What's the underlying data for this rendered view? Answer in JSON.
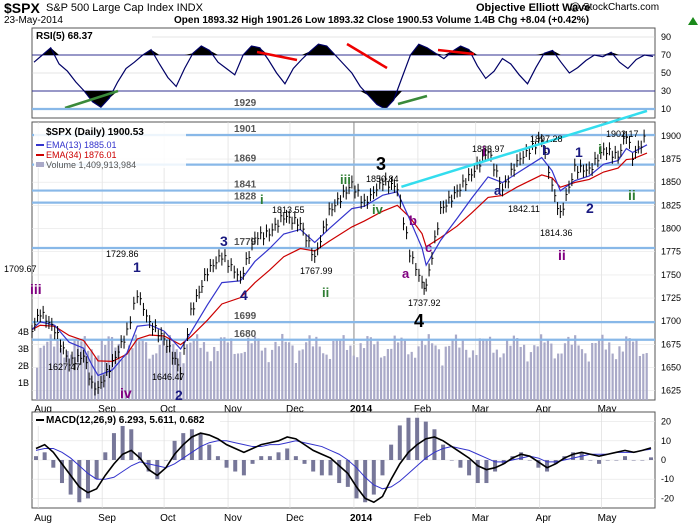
{
  "header": {
    "symbol": "$SPX",
    "description": "S&P 500 Large Cap Index INDX",
    "date": "23-May-2014",
    "brand": "Objective Elliott Wave",
    "copyright": "@ StockCharts.com",
    "quote": "Open 1893.32   High 1901.26   Low 1893.32   Close 1900.53   Volume 1.4B   Chg +8.04 (+0.42%)",
    "chg_icon": "up-triangle-icon"
  },
  "colors": {
    "price_up": "#000000",
    "ema13": "#3333cc",
    "ema34": "#cc0000",
    "volume": "#a9a9c8",
    "trend": "#33ddee",
    "wave_blue": "#1a1a80",
    "wave_purple": "#800080",
    "wave_green": "#2e7d32",
    "rsi": "#000066",
    "macd": "#000000",
    "signal": "#3333cc",
    "hist": "#9999bb"
  },
  "rsi_panel": {
    "legend": "RSI(5) 68.37",
    "ticks": [
      "90",
      "70",
      "50",
      "30",
      "10"
    ]
  },
  "price_panel": {
    "legend": {
      "title": "$SPX (Daily) 1900.53",
      "ema13": "EMA(13) 1885.01",
      "ema34": "EMA(34) 1876.01",
      "volume": "Volume 1,409,913,984"
    },
    "y_ticks": [
      "1900",
      "1875",
      "1850",
      "1825",
      "1800",
      "1775",
      "1750",
      "1725",
      "1700",
      "1675",
      "1650",
      "1625"
    ],
    "volume_ticks": [
      "4B",
      "3B",
      "2B",
      "1B"
    ],
    "x_ticks": [
      "Aug",
      "Sep",
      "Oct",
      "Nov",
      "Dec",
      "2014",
      "Feb",
      "Mar",
      "Apr",
      "May"
    ]
  },
  "macd_panel": {
    "legend": "MACD(12,26,9) 6.293, 5.611, 0.682",
    "ticks": [
      "20",
      "10",
      "0",
      "-10",
      "-20"
    ],
    "x_ticks": [
      "Aug",
      "Sep",
      "Oct",
      "Nov",
      "Dec",
      "2014",
      "Feb",
      "Mar",
      "Apr",
      "May"
    ]
  },
  "chart_data": {
    "type": "line",
    "title": "$SPX S&P 500 Large Cap Index INDX",
    "ylim": [
      1615,
      1915
    ],
    "x_range": [
      "2013-07-29",
      "2014-05-23"
    ],
    "series": [
      {
        "name": "$SPX (Daily) 1900.53",
        "points": [
          [
            "2013-07-29",
            1691
          ],
          [
            "2013-08-02",
            1709.67
          ],
          [
            "2013-08-09",
            1691
          ],
          [
            "2013-08-16",
            1655
          ],
          [
            "2013-08-23",
            1663
          ],
          [
            "2013-08-27",
            1631
          ],
          [
            "2013-08-30",
            1627.47
          ],
          [
            "2013-09-06",
            1655
          ],
          [
            "2013-09-13",
            1688
          ],
          [
            "2013-09-18",
            1729.86
          ],
          [
            "2013-09-24",
            1698
          ],
          [
            "2013-10-01",
            1681
          ],
          [
            "2013-10-09",
            1646.47
          ],
          [
            "2013-10-14",
            1710
          ],
          [
            "2013-10-22",
            1754
          ],
          [
            "2013-10-29",
            1771
          ],
          [
            "2013-11-07",
            1746
          ],
          [
            "2013-11-14",
            1790
          ],
          [
            "2013-11-21",
            1795
          ],
          [
            "2013-11-28",
            1813.55
          ],
          [
            "2013-12-06",
            1805
          ],
          [
            "2013-12-13",
            1767.99
          ],
          [
            "2013-12-20",
            1818
          ],
          [
            "2013-12-31",
            1848
          ],
          [
            "2014-01-06",
            1827
          ],
          [
            "2014-01-15",
            1850.84
          ],
          [
            "2014-01-22",
            1844
          ],
          [
            "2014-01-28",
            1774
          ],
          [
            "2014-02-03",
            1741
          ],
          [
            "2014-02-05",
            1737.92
          ],
          [
            "2014-02-12",
            1820
          ],
          [
            "2014-02-20",
            1840
          ],
          [
            "2014-02-27",
            1859
          ],
          [
            "2014-03-07",
            1883.97
          ],
          [
            "2014-03-14",
            1842.11
          ],
          [
            "2014-03-21",
            1872
          ],
          [
            "2014-04-02",
            1897.28
          ],
          [
            "2014-04-07",
            1845
          ],
          [
            "2014-04-11",
            1814.36
          ],
          [
            "2014-04-18",
            1865
          ],
          [
            "2014-04-25",
            1863
          ],
          [
            "2014-05-02",
            1885
          ],
          [
            "2014-05-09",
            1878
          ],
          [
            "2014-05-13",
            1902.17
          ],
          [
            "2014-05-16",
            1877
          ],
          [
            "2014-05-23",
            1900.53
          ]
        ]
      }
    ],
    "support_lines": [
      1929,
      1901,
      1869,
      1841,
      1828,
      1779,
      1699,
      1680
    ],
    "trendline": [
      [
        "2014-01-24",
        1845
      ],
      [
        "2014-05-23",
        1927
      ]
    ],
    "price_labels": [
      "1709.67",
      "1729.86",
      "1627.47",
      "1646.47",
      "1813.55",
      "1767.99",
      "1850.84",
      "1737.92",
      "1883.97",
      "1842.11",
      "1897.28",
      "1814.36",
      "1902.17"
    ],
    "wave_labels": [
      {
        "text": "iii",
        "color": "purple"
      },
      {
        "text": "iv",
        "color": "purple"
      },
      {
        "text": "1",
        "color": "blue"
      },
      {
        "text": "2",
        "color": "blue"
      },
      {
        "text": "3",
        "color": "blue"
      },
      {
        "text": "4",
        "color": "blue"
      },
      {
        "text": "i",
        "color": "green"
      },
      {
        "text": "ii",
        "color": "green"
      },
      {
        "text": "iii",
        "color": "green"
      },
      {
        "text": "iv",
        "color": "green"
      },
      {
        "text": "3",
        "color": "black"
      },
      {
        "text": "4",
        "color": "black"
      },
      {
        "text": "a",
        "color": "purple"
      },
      {
        "text": "b",
        "color": "purple"
      },
      {
        "text": "c",
        "color": "purple"
      },
      {
        "text": "i",
        "color": "purple"
      },
      {
        "text": "a",
        "color": "blue"
      },
      {
        "text": "b",
        "color": "blue"
      },
      {
        "text": "1",
        "color": "blue"
      },
      {
        "text": "2",
        "color": "blue"
      },
      {
        "text": "ii",
        "color": "purple"
      },
      {
        "text": "i",
        "color": "green"
      },
      {
        "text": "ii",
        "color": "green"
      }
    ],
    "rsi": {
      "name": "RSI(5) 68.37",
      "ylim": [
        0,
        100
      ],
      "levels": [
        70,
        50,
        30
      ],
      "values": [
        62,
        70,
        78,
        60,
        52,
        40,
        30,
        18,
        12,
        22,
        40,
        55,
        62,
        70,
        76,
        60,
        45,
        35,
        55,
        72,
        80,
        75,
        62,
        55,
        48,
        70,
        80,
        78,
        65,
        50,
        38,
        55,
        65,
        74,
        82,
        80,
        70,
        60,
        50,
        35,
        25,
        15,
        10,
        20,
        45,
        70,
        82,
        78,
        72,
        66,
        74,
        80,
        76,
        58,
        44,
        52,
        66,
        60,
        48,
        38,
        56,
        72,
        75,
        62,
        50,
        56,
        64,
        70,
        68,
        73,
        62,
        55,
        65,
        70,
        68.37
      ]
    },
    "macd": {
      "name": "MACD(12,26,9) 6.293, 5.611, 0.682",
      "ylim": [
        -25,
        25
      ],
      "macd": [
        6,
        8,
        4,
        -2,
        -8,
        -14,
        -17,
        -15,
        -8,
        -2,
        3,
        5,
        1,
        -5,
        -8,
        -4,
        3,
        8,
        12,
        14,
        13,
        11,
        8,
        6,
        4,
        6,
        8,
        9,
        10,
        12,
        11,
        8,
        5,
        3,
        1,
        -3,
        -7,
        -14,
        -20,
        -22,
        -19,
        -10,
        -2,
        4,
        8,
        11,
        12,
        10,
        7,
        4,
        1,
        -3,
        -5,
        -4,
        -2,
        1,
        3,
        2,
        -1,
        -4,
        -2,
        1,
        3,
        4,
        3,
        2,
        3,
        4,
        5,
        4,
        5,
        6.293
      ],
      "signal": [
        5,
        6,
        6,
        4,
        1,
        -3,
        -7,
        -10,
        -10,
        -9,
        -6,
        -3,
        -1,
        -2,
        -3,
        -4,
        -2,
        1,
        4,
        7,
        9,
        10,
        10,
        9,
        8,
        7,
        7,
        8,
        8,
        9,
        10,
        9,
        8,
        7,
        5,
        3,
        0,
        -4,
        -9,
        -13,
        -15,
        -14,
        -11,
        -7,
        -3,
        1,
        4,
        6,
        7,
        6,
        5,
        3,
        1,
        -1,
        -1,
        0,
        1,
        2,
        1,
        -1,
        -1,
        0,
        1,
        2,
        3,
        3,
        3,
        4,
        4,
        4,
        5,
        5.611
      ]
    }
  }
}
